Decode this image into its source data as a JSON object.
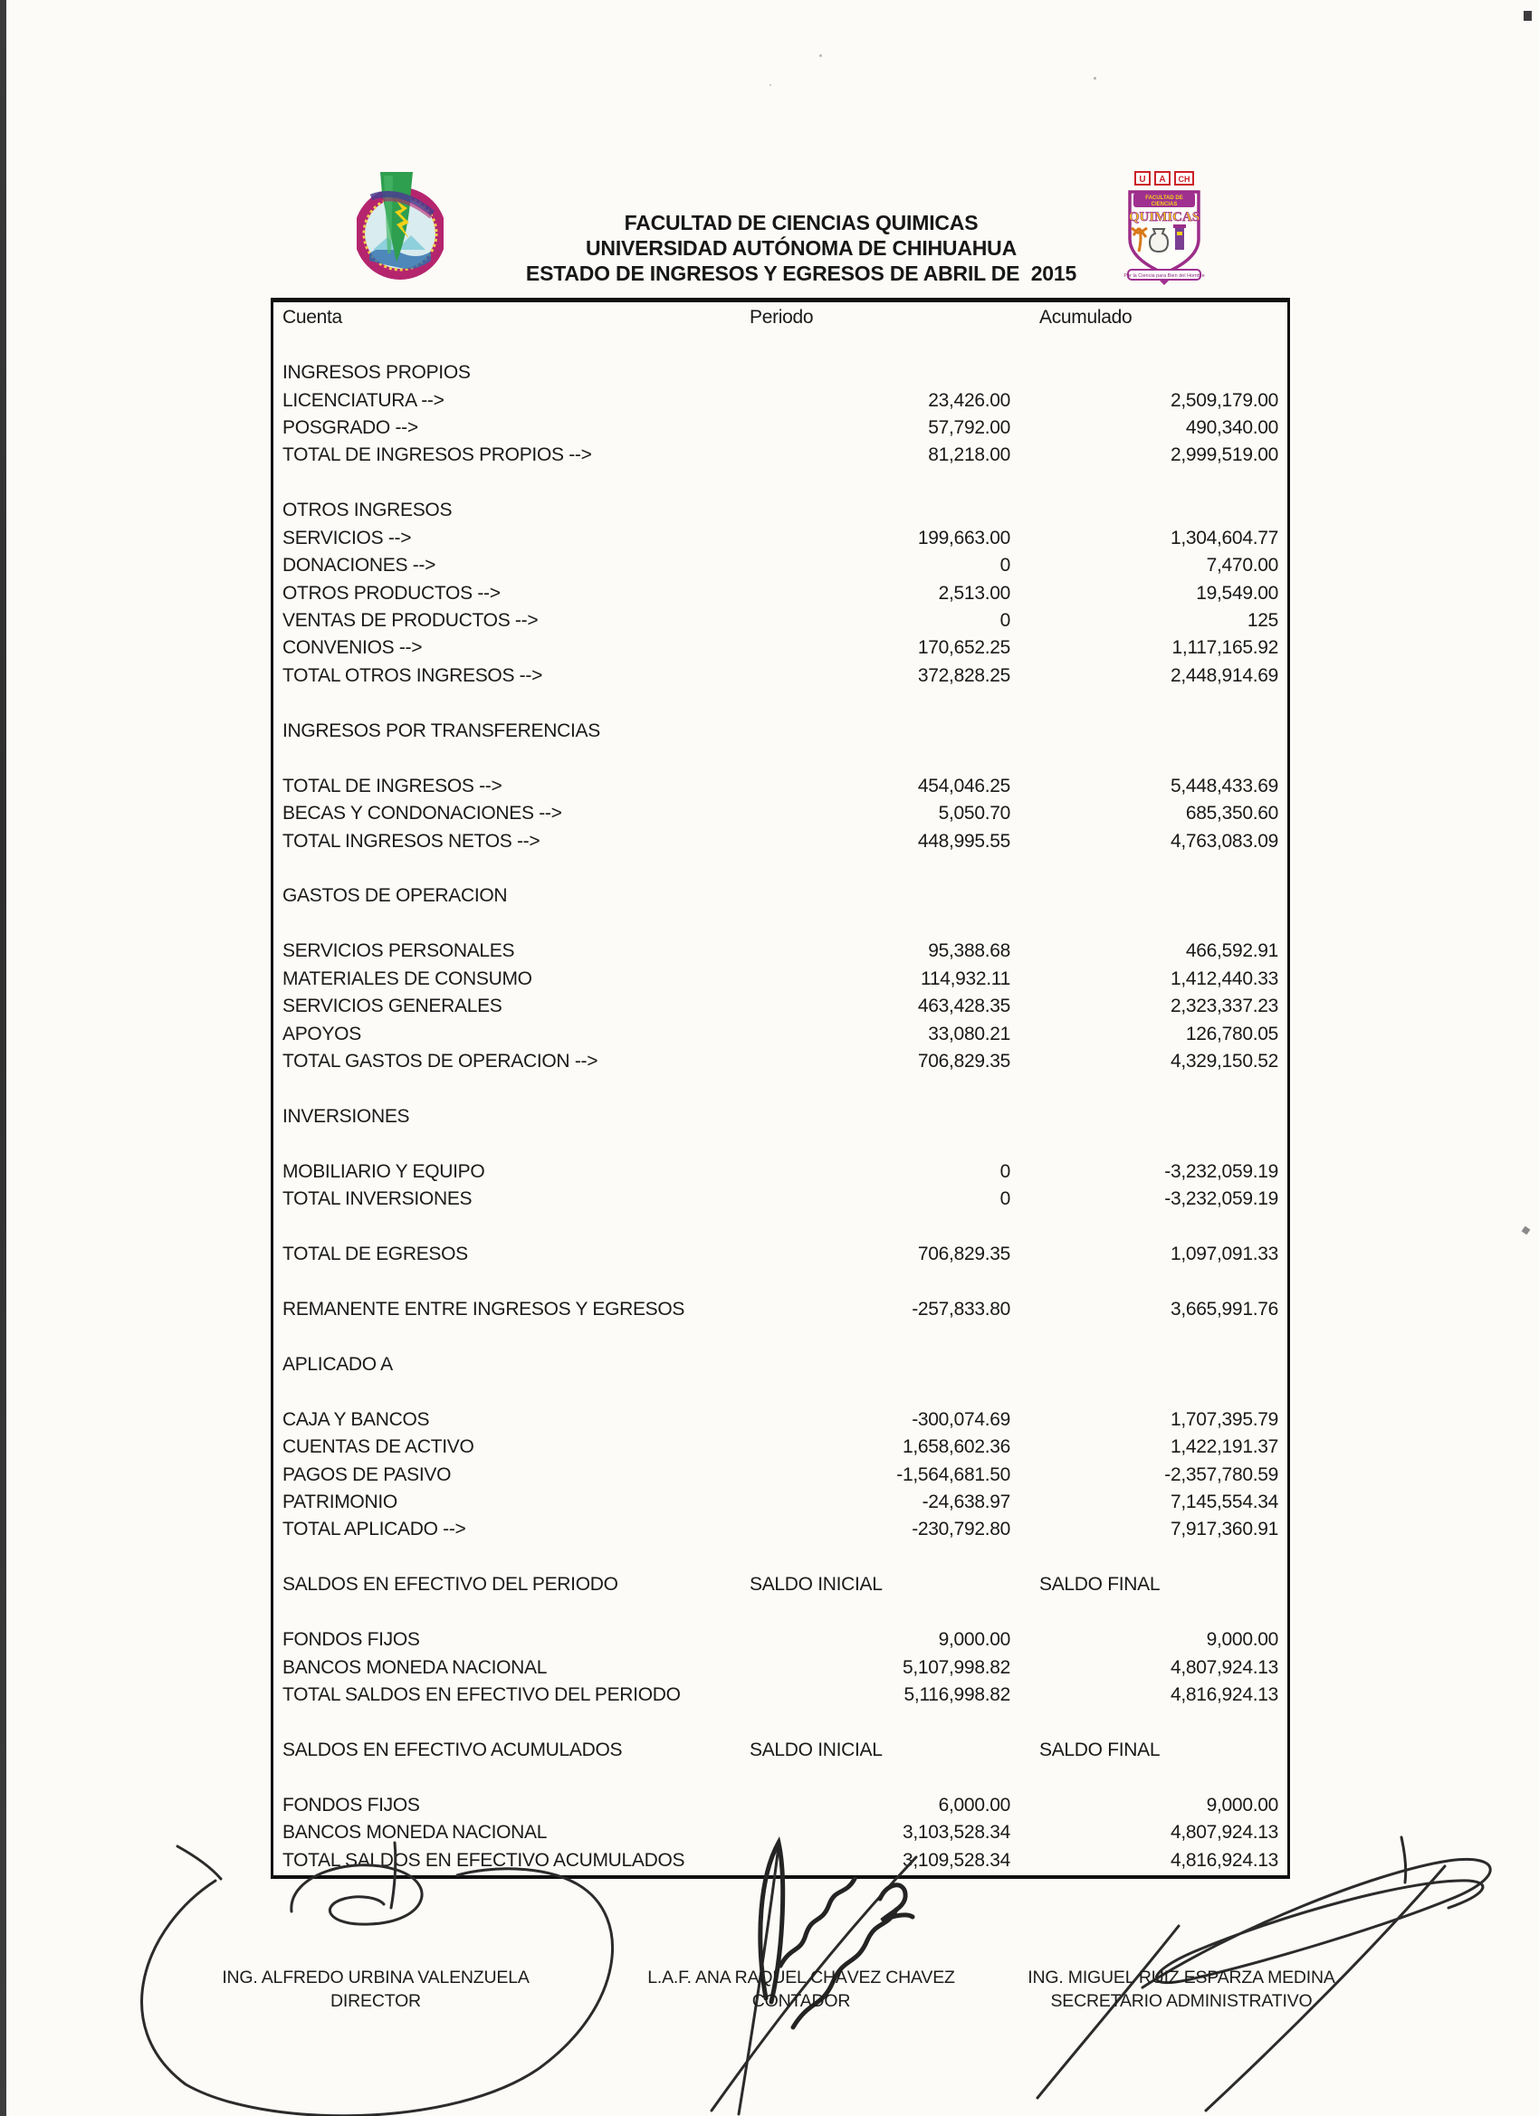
{
  "header": {
    "line1": "FACULTAD DE CIENCIAS QUIMICAS",
    "line2": "UNIVERSIDAD AUTÓNOMA DE CHIHUAHUA",
    "line3": "ESTADO DE INGRESOS Y EGRESOS DE ABRIL DE  2015",
    "left_logo": "uach-seal-logo",
    "right_logo": "fcq-shield-logo",
    "right_logo_text": {
      "blocks": "U A CH",
      "banner1": "FACULTAD DE",
      "banner2": "CIENCIAS",
      "big": "QUIMICAS",
      "motto": "Por la Ciencia para Bien del Hombre"
    }
  },
  "colors": {
    "paper": "#fcfbf7",
    "ink": "#1a1a1a",
    "seal_ring": "#b5256e",
    "seal_green": "#2e9e4f",
    "seal_yellow": "#f2d117",
    "shield_purple": "#9c2d88",
    "shield_orange": "#d97818",
    "logo_red": "#cc2027"
  },
  "table": {
    "columns": [
      "Cuenta",
      "Periodo",
      "Acumulado"
    ],
    "rows": [
      {
        "t": "gap"
      },
      {
        "t": "sec",
        "l": "INGRESOS PROPIOS"
      },
      {
        "t": "row",
        "l": "LICENCIATURA -->",
        "p": "23,426.00",
        "a": "2,509,179.00"
      },
      {
        "t": "row",
        "l": "POSGRADO -->",
        "p": "57,792.00",
        "a": "490,340.00"
      },
      {
        "t": "row",
        "l": "TOTAL DE INGRESOS PROPIOS -->",
        "p": "81,218.00",
        "a": "2,999,519.00"
      },
      {
        "t": "gap"
      },
      {
        "t": "sec",
        "l": "OTROS INGRESOS"
      },
      {
        "t": "row",
        "l": "SERVICIOS -->",
        "p": "199,663.00",
        "a": "1,304,604.77"
      },
      {
        "t": "row",
        "l": "DONACIONES -->",
        "p": "0",
        "a": "7,470.00"
      },
      {
        "t": "row",
        "l": "OTROS PRODUCTOS -->",
        "p": "2,513.00",
        "a": "19,549.00"
      },
      {
        "t": "row",
        "l": "VENTAS DE PRODUCTOS -->",
        "p": "0",
        "a": "125"
      },
      {
        "t": "row",
        "l": "CONVENIOS -->",
        "p": "170,652.25",
        "a": "1,117,165.92"
      },
      {
        "t": "row",
        "l": "TOTAL OTROS INGRESOS -->",
        "p": "372,828.25",
        "a": "2,448,914.69"
      },
      {
        "t": "gap"
      },
      {
        "t": "sec",
        "l": "INGRESOS POR TRANSFERENCIAS"
      },
      {
        "t": "gap"
      },
      {
        "t": "row",
        "l": "TOTAL DE INGRESOS -->",
        "p": "454,046.25",
        "a": "5,448,433.69"
      },
      {
        "t": "row",
        "l": "BECAS Y CONDONACIONES -->",
        "p": "5,050.70",
        "a": "685,350.60"
      },
      {
        "t": "row",
        "l": "TOTAL INGRESOS NETOS -->",
        "p": "448,995.55",
        "a": "4,763,083.09"
      },
      {
        "t": "gap"
      },
      {
        "t": "sec",
        "l": "GASTOS DE OPERACION"
      },
      {
        "t": "gap"
      },
      {
        "t": "row",
        "l": "SERVICIOS PERSONALES",
        "p": "95,388.68",
        "a": "466,592.91"
      },
      {
        "t": "row",
        "l": "MATERIALES DE CONSUMO",
        "p": "114,932.11",
        "a": "1,412,440.33"
      },
      {
        "t": "row",
        "l": "SERVICIOS GENERALES",
        "p": "463,428.35",
        "a": "2,323,337.23"
      },
      {
        "t": "row",
        "l": "APOYOS",
        "p": "33,080.21",
        "a": "126,780.05"
      },
      {
        "t": "row",
        "l": "TOTAL GASTOS DE OPERACION -->",
        "p": "706,829.35",
        "a": "4,329,150.52"
      },
      {
        "t": "gap"
      },
      {
        "t": "sec",
        "l": "INVERSIONES"
      },
      {
        "t": "gap"
      },
      {
        "t": "row",
        "l": "MOBILIARIO Y EQUIPO",
        "p": "0",
        "a": "-3,232,059.19"
      },
      {
        "t": "row",
        "l": "TOTAL INVERSIONES",
        "p": "0",
        "a": "-3,232,059.19"
      },
      {
        "t": "gap"
      },
      {
        "t": "row",
        "l": "TOTAL DE EGRESOS",
        "p": "706,829.35",
        "a": "1,097,091.33"
      },
      {
        "t": "gap"
      },
      {
        "t": "row",
        "l": "REMANENTE ENTRE INGRESOS Y EGRESOS",
        "p": "-257,833.80",
        "a": "3,665,991.76"
      },
      {
        "t": "gap"
      },
      {
        "t": "sec",
        "l": "APLICADO A"
      },
      {
        "t": "gap"
      },
      {
        "t": "row",
        "l": "CAJA Y BANCOS",
        "p": "-300,074.69",
        "a": "1,707,395.79"
      },
      {
        "t": "row",
        "l": "CUENTAS DE ACTIVO",
        "p": "1,658,602.36",
        "a": "1,422,191.37"
      },
      {
        "t": "row",
        "l": "PAGOS DE PASIVO",
        "p": "-1,564,681.50",
        "a": "-2,357,780.59"
      },
      {
        "t": "row",
        "l": "PATRIMONIO",
        "p": "-24,638.97",
        "a": "7,145,554.34"
      },
      {
        "t": "row",
        "l": "TOTAL APLICADO -->",
        "p": "-230,792.80",
        "a": "7,917,360.91"
      },
      {
        "t": "gap"
      },
      {
        "t": "sub",
        "l": "SALDOS EN EFECTIVO DEL PERIODO",
        "p": "SALDO INICIAL",
        "a": "SALDO FINAL"
      },
      {
        "t": "gap"
      },
      {
        "t": "row",
        "l": "FONDOS FIJOS",
        "p": "9,000.00",
        "a": "9,000.00"
      },
      {
        "t": "row",
        "l": "BANCOS MONEDA NACIONAL",
        "p": "5,107,998.82",
        "a": "4,807,924.13"
      },
      {
        "t": "row",
        "l": "TOTAL SALDOS EN EFECTIVO DEL PERIODO",
        "p": "5,116,998.82",
        "a": "4,816,924.13"
      },
      {
        "t": "gap"
      },
      {
        "t": "sub",
        "l": "SALDOS EN EFECTIVO ACUMULADOS",
        "p": "SALDO INICIAL",
        "a": "SALDO FINAL"
      },
      {
        "t": "gap"
      },
      {
        "t": "row",
        "l": "FONDOS FIJOS",
        "p": "6,000.00",
        "a": "9,000.00"
      },
      {
        "t": "row",
        "l": "BANCOS MONEDA NACIONAL",
        "p": "3,103,528.34",
        "a": "4,807,924.13"
      },
      {
        "t": "row",
        "l": "TOTAL SALDOS EN EFECTIVO ACUMULADOS",
        "p": "3,109,528.34",
        "a": "4,816,924.13"
      }
    ]
  },
  "signatures": [
    {
      "name": "ING. ALFREDO URBINA VALENZUELA",
      "title": "DIRECTOR"
    },
    {
      "name": "L.A.F. ANA RAQUEL CHÁVEZ CHAVEZ",
      "title": "CONTADOR"
    },
    {
      "name": "ING. MIGUEL RUIZ ESPARZA MEDINA",
      "title": "SECRETARIO  ADMINISTRATIVO"
    }
  ]
}
